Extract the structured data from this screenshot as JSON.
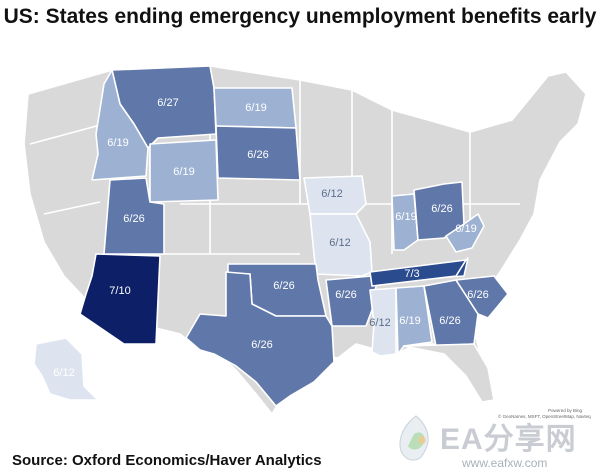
{
  "title": "US: States ending emergency unemployment benefits early",
  "source": "Source: Oxford Economics/Haver Analytics",
  "map_credit": {
    "powered_by": "Powered by Bing",
    "copyright": "© GeoNames, MSFT, OpenStreetMap, Navteq"
  },
  "watermark": {
    "brand": "EA分享网",
    "url": "www.eafxw.com"
  },
  "legend_colors": {
    "6/12": "#dde4f0",
    "6/19": "#9db1d2",
    "6/26": "#5f77a9",
    "6/27": "#5f77a9",
    "7/3": "#2b4b8f",
    "7/10": "#0d1f66",
    "none": "#d9d9d9"
  },
  "states": {
    "MT": "6/27",
    "ID": "6/19",
    "ND": "6/19",
    "WY": "6/19",
    "SD": "6/26",
    "UT": "6/26",
    "IA": "6/12",
    "MO": "6/12",
    "AZ": "7/10",
    "OK": "6/26",
    "AR": "6/26",
    "TN": "7/3",
    "TX": "6/26",
    "MS": "6/12",
    "AL": "6/19",
    "GA": "6/26",
    "SC": "6/26",
    "IN": "6/19",
    "OH": "6/26",
    "WV": "6/19",
    "AK": "6/12"
  }
}
